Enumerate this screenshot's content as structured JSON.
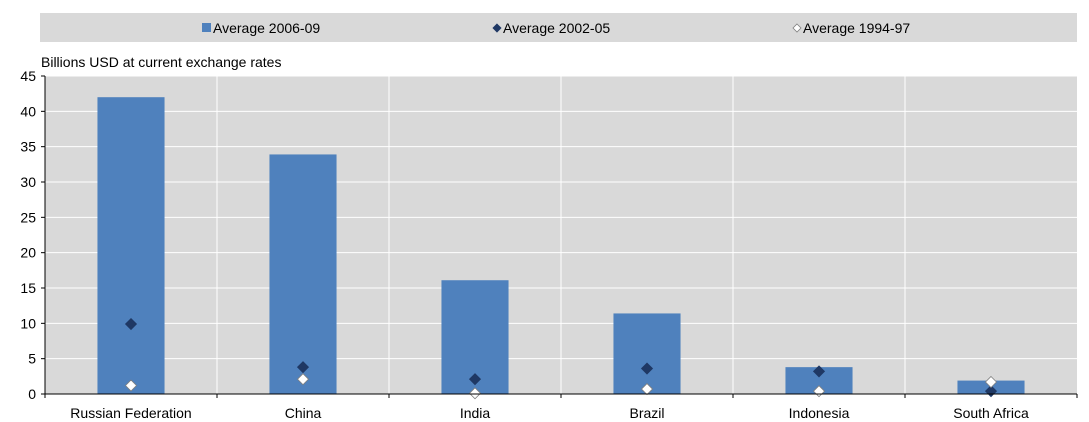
{
  "chart_data": {
    "type": "bar",
    "title": "",
    "ylabel": "Billions USD at current exchange rates",
    "xlabel": "",
    "ylim": [
      0,
      45
    ],
    "yticks": [
      0,
      5,
      10,
      15,
      20,
      25,
      30,
      35,
      40,
      45
    ],
    "grid": true,
    "legend_position": "top",
    "categories": [
      "Russian Federation",
      "China",
      "India",
      "Brazil",
      "Indonesia",
      "South Africa"
    ],
    "series": [
      {
        "name": "Average 2006-09",
        "mark": "bar",
        "color": "#4f81bd",
        "values": [
          42.0,
          33.9,
          16.1,
          11.4,
          3.8,
          1.9
        ]
      },
      {
        "name": "Average 2002-05",
        "mark": "diamond",
        "color": "#1f3864",
        "values": [
          9.9,
          3.8,
          2.1,
          3.6,
          3.2,
          0.4
        ]
      },
      {
        "name": "Average 1994-97",
        "mark": "diamond",
        "color": "#ffffff",
        "values": [
          1.2,
          2.1,
          0.1,
          0.7,
          0.4,
          1.7
        ]
      }
    ],
    "plot_background": "#d9d9d9",
    "legend_background": "#d9d9d9"
  }
}
